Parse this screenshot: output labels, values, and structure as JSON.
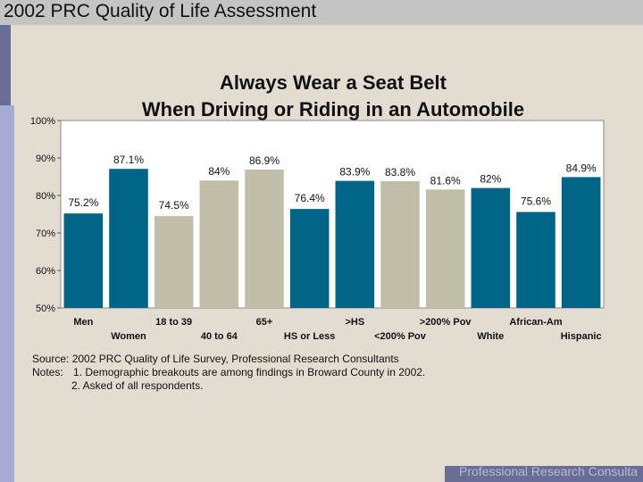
{
  "header": {
    "title": "2002 PRC Quality of Life Assessment"
  },
  "chart_data": {
    "type": "bar",
    "title_line1": "Always Wear a Seat Belt",
    "title_line2": "When Driving or Riding in an Automobile",
    "ylim": [
      50,
      100
    ],
    "yticks": [
      "100%",
      "90%",
      "80%",
      "70%",
      "60%",
      "50%"
    ],
    "ytick_values": [
      100,
      90,
      80,
      70,
      60,
      50
    ],
    "categories": [
      "Men",
      "Women",
      "18 to 39",
      "40 to 64",
      "65+",
      "HS or Less",
      ">HS",
      "<200% Pov",
      ">200% Pov",
      "White",
      "African-Am",
      "Hispanic"
    ],
    "values": [
      75.2,
      87.1,
      74.5,
      84,
      86.9,
      76.4,
      83.9,
      83.8,
      81.6,
      82,
      75.6,
      84.9
    ],
    "value_labels": [
      "75.2%",
      "87.1%",
      "74.5%",
      "84%",
      "86.9%",
      "76.4%",
      "83.9%",
      "83.8%",
      "81.6%",
      "82%",
      "75.6%",
      "84.9%"
    ],
    "bar_colors": [
      "#006388",
      "#006388",
      "#c0bea8",
      "#c0bea8",
      "#c0bea8",
      "#006388",
      "#006388",
      "#c0bea8",
      "#c0bea8",
      "#006388",
      "#006388",
      "#006388"
    ]
  },
  "notes": {
    "source": "Source: 2002 PRC Quality of Life Survey, Professional Research Consultants",
    "notes_label": "Notes:",
    "note1": "1. Demographic breakouts are among findings in Broward County in 2002.",
    "note2": "2. Asked of all respondents."
  },
  "footer": {
    "text": "Professional Research Consultants"
  }
}
